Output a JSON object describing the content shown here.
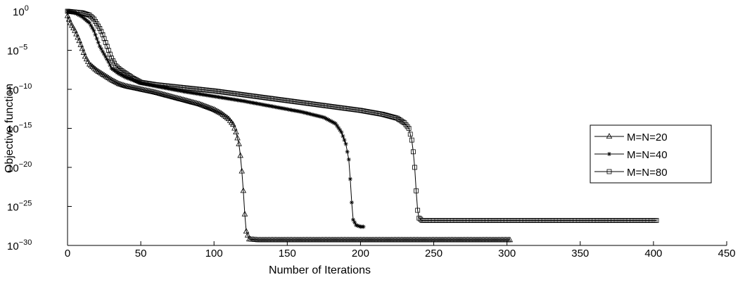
{
  "chart_data": {
    "type": "line",
    "title": "",
    "xlabel": "Number of Iterations",
    "ylabel": "Objective function",
    "xlim": [
      0,
      450
    ],
    "ylim_exponent": [
      -30,
      0
    ],
    "yscale": "log",
    "xticks": [
      "0",
      "50",
      "100",
      "150",
      "200",
      "250",
      "300",
      "350",
      "400",
      "450"
    ],
    "yticks": [
      {
        "base": "10",
        "exp": "0",
        "value": 0
      },
      {
        "base": "10",
        "exp": "−5",
        "value": -5
      },
      {
        "base": "10",
        "exp": "−10",
        "value": -10
      },
      {
        "base": "10",
        "exp": "−15",
        "value": -15
      },
      {
        "base": "10",
        "exp": "−20",
        "value": -20
      },
      {
        "base": "10",
        "exp": "−25",
        "value": -25
      },
      {
        "base": "10",
        "exp": "−30",
        "value": -30
      }
    ],
    "grid": false,
    "legend_position": "right",
    "series": [
      {
        "name": "M=N=20",
        "marker": "triangle",
        "x_end": 302,
        "points": [
          [
            0,
            -0.6
          ],
          [
            2,
            -1.5
          ],
          [
            5,
            -2.5
          ],
          [
            8,
            -3.8
          ],
          [
            10,
            -4.8
          ],
          [
            12,
            -5.8
          ],
          [
            15,
            -6.8
          ],
          [
            20,
            -7.6
          ],
          [
            25,
            -8.2
          ],
          [
            30,
            -8.8
          ],
          [
            35,
            -9.3
          ],
          [
            40,
            -9.6
          ],
          [
            50,
            -10.0
          ],
          [
            60,
            -10.4
          ],
          [
            70,
            -10.9
          ],
          [
            80,
            -11.4
          ],
          [
            90,
            -11.9
          ],
          [
            100,
            -12.6
          ],
          [
            105,
            -13.1
          ],
          [
            110,
            -13.8
          ],
          [
            113,
            -14.5
          ],
          [
            115,
            -15.5
          ],
          [
            117,
            -17.0
          ],
          [
            118,
            -18.5
          ],
          [
            119,
            -20.5
          ],
          [
            120,
            -23.0
          ],
          [
            121,
            -26.0
          ],
          [
            122,
            -28.2
          ],
          [
            124,
            -29.2
          ],
          [
            130,
            -29.3
          ],
          [
            302,
            -29.3
          ]
        ]
      },
      {
        "name": "M=N=40",
        "marker": "star",
        "x_end": 202,
        "points": [
          [
            0,
            0
          ],
          [
            5,
            -0.2
          ],
          [
            10,
            -0.7
          ],
          [
            15,
            -1.5
          ],
          [
            18,
            -2.5
          ],
          [
            20,
            -3.5
          ],
          [
            22,
            -4.5
          ],
          [
            25,
            -5.5
          ],
          [
            28,
            -6.5
          ],
          [
            30,
            -7.3
          ],
          [
            35,
            -8.0
          ],
          [
            40,
            -8.5
          ],
          [
            50,
            -9.2
          ],
          [
            60,
            -9.6
          ],
          [
            80,
            -10.3
          ],
          [
            100,
            -10.9
          ],
          [
            120,
            -11.5
          ],
          [
            140,
            -12.2
          ],
          [
            160,
            -12.9
          ],
          [
            175,
            -13.6
          ],
          [
            183,
            -14.4
          ],
          [
            187,
            -15.5
          ],
          [
            190,
            -17.0
          ],
          [
            192,
            -19.0
          ],
          [
            193,
            -21.5
          ],
          [
            194,
            -24.5
          ],
          [
            195,
            -26.7
          ],
          [
            197,
            -27.4
          ],
          [
            200,
            -27.6
          ],
          [
            202,
            -27.6
          ]
        ]
      },
      {
        "name": "M=N=80",
        "marker": "square",
        "x_end": 402,
        "points": [
          [
            0,
            0
          ],
          [
            10,
            -0.2
          ],
          [
            15,
            -0.5
          ],
          [
            18,
            -1.0
          ],
          [
            20,
            -1.6
          ],
          [
            22,
            -2.2
          ],
          [
            24,
            -3.0
          ],
          [
            26,
            -4.0
          ],
          [
            28,
            -5.0
          ],
          [
            30,
            -6.0
          ],
          [
            33,
            -7.0
          ],
          [
            36,
            -7.5
          ],
          [
            40,
            -8.0
          ],
          [
            45,
            -8.6
          ],
          [
            50,
            -9.1
          ],
          [
            60,
            -9.4
          ],
          [
            80,
            -9.8
          ],
          [
            100,
            -10.2
          ],
          [
            120,
            -10.7
          ],
          [
            140,
            -11.2
          ],
          [
            160,
            -11.7
          ],
          [
            180,
            -12.2
          ],
          [
            200,
            -12.7
          ],
          [
            215,
            -13.2
          ],
          [
            225,
            -13.7
          ],
          [
            230,
            -14.3
          ],
          [
            233,
            -15.0
          ],
          [
            235,
            -16.5
          ],
          [
            236,
            -18.0
          ],
          [
            237,
            -20.0
          ],
          [
            238,
            -23.0
          ],
          [
            239,
            -25.5
          ],
          [
            240,
            -26.5
          ],
          [
            242,
            -26.8
          ],
          [
            250,
            -26.8
          ],
          [
            402,
            -26.8
          ]
        ]
      }
    ]
  }
}
